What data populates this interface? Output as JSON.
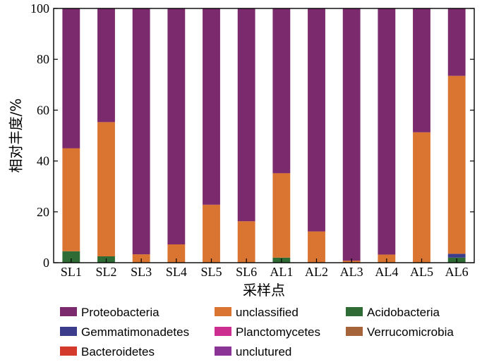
{
  "chart_data": {
    "type": "bar",
    "stacked": true,
    "categories": [
      "SL1",
      "SL2",
      "SL3",
      "SL4",
      "SL5",
      "SL6",
      "AL1",
      "AL2",
      "AL3",
      "AL4",
      "AL5",
      "AL6"
    ],
    "xlabel": "采样点",
    "ylabel": "相对丰度/%",
    "ylim": [
      0,
      100
    ],
    "yticks": [
      0,
      20,
      40,
      60,
      80,
      100
    ],
    "legend_position": "bottom",
    "series": [
      {
        "name": "Acidobacteria",
        "color": "#2e6b35",
        "values": [
          4.5,
          2.5,
          0,
          0,
          0,
          0,
          2.0,
          0,
          0,
          0,
          0,
          2.0
        ]
      },
      {
        "name": "Gemmatimonadetes",
        "color": "#3b3d8c",
        "values": [
          0,
          0,
          0,
          0,
          0,
          0,
          0,
          0,
          0,
          0,
          0,
          1.5
        ]
      },
      {
        "name": "Planctomycetes",
        "color": "#cc2e8f",
        "values": [
          0,
          0,
          0,
          0,
          0,
          0,
          0,
          0,
          0,
          0,
          0,
          0
        ]
      },
      {
        "name": "Verrucomicrobia",
        "color": "#a5643a",
        "values": [
          0,
          0,
          0,
          0,
          0,
          0,
          0,
          0,
          0,
          0,
          0,
          0
        ]
      },
      {
        "name": "Bacteroidetes",
        "color": "#d43a2c",
        "values": [
          0,
          0,
          0,
          0,
          0,
          0,
          0,
          0,
          0,
          0,
          0,
          0
        ]
      },
      {
        "name": "unclutured",
        "color": "#8a3596",
        "values": [
          0,
          0,
          0,
          0,
          0,
          0,
          0,
          0,
          0,
          0,
          0,
          0
        ]
      },
      {
        "name": "unclassified",
        "color": "#d97431",
        "values": [
          40.5,
          52.8,
          3.3,
          7.2,
          22.8,
          16.3,
          33.2,
          12.3,
          0.8,
          3.2,
          51.3,
          70.0
        ]
      },
      {
        "name": "Proteobacteria",
        "color": "#7a2a6d",
        "values": [
          55.0,
          44.7,
          96.7,
          92.8,
          77.2,
          83.7,
          64.8,
          87.7,
          99.2,
          96.8,
          48.7,
          26.5
        ]
      }
    ],
    "legend_order": [
      "Proteobacteria",
      "unclassified",
      "Acidobacteria",
      "Gemmatimonadetes",
      "Planctomycetes",
      "Verrucomicrobia",
      "Bacteroidetes",
      "unclutured"
    ]
  }
}
